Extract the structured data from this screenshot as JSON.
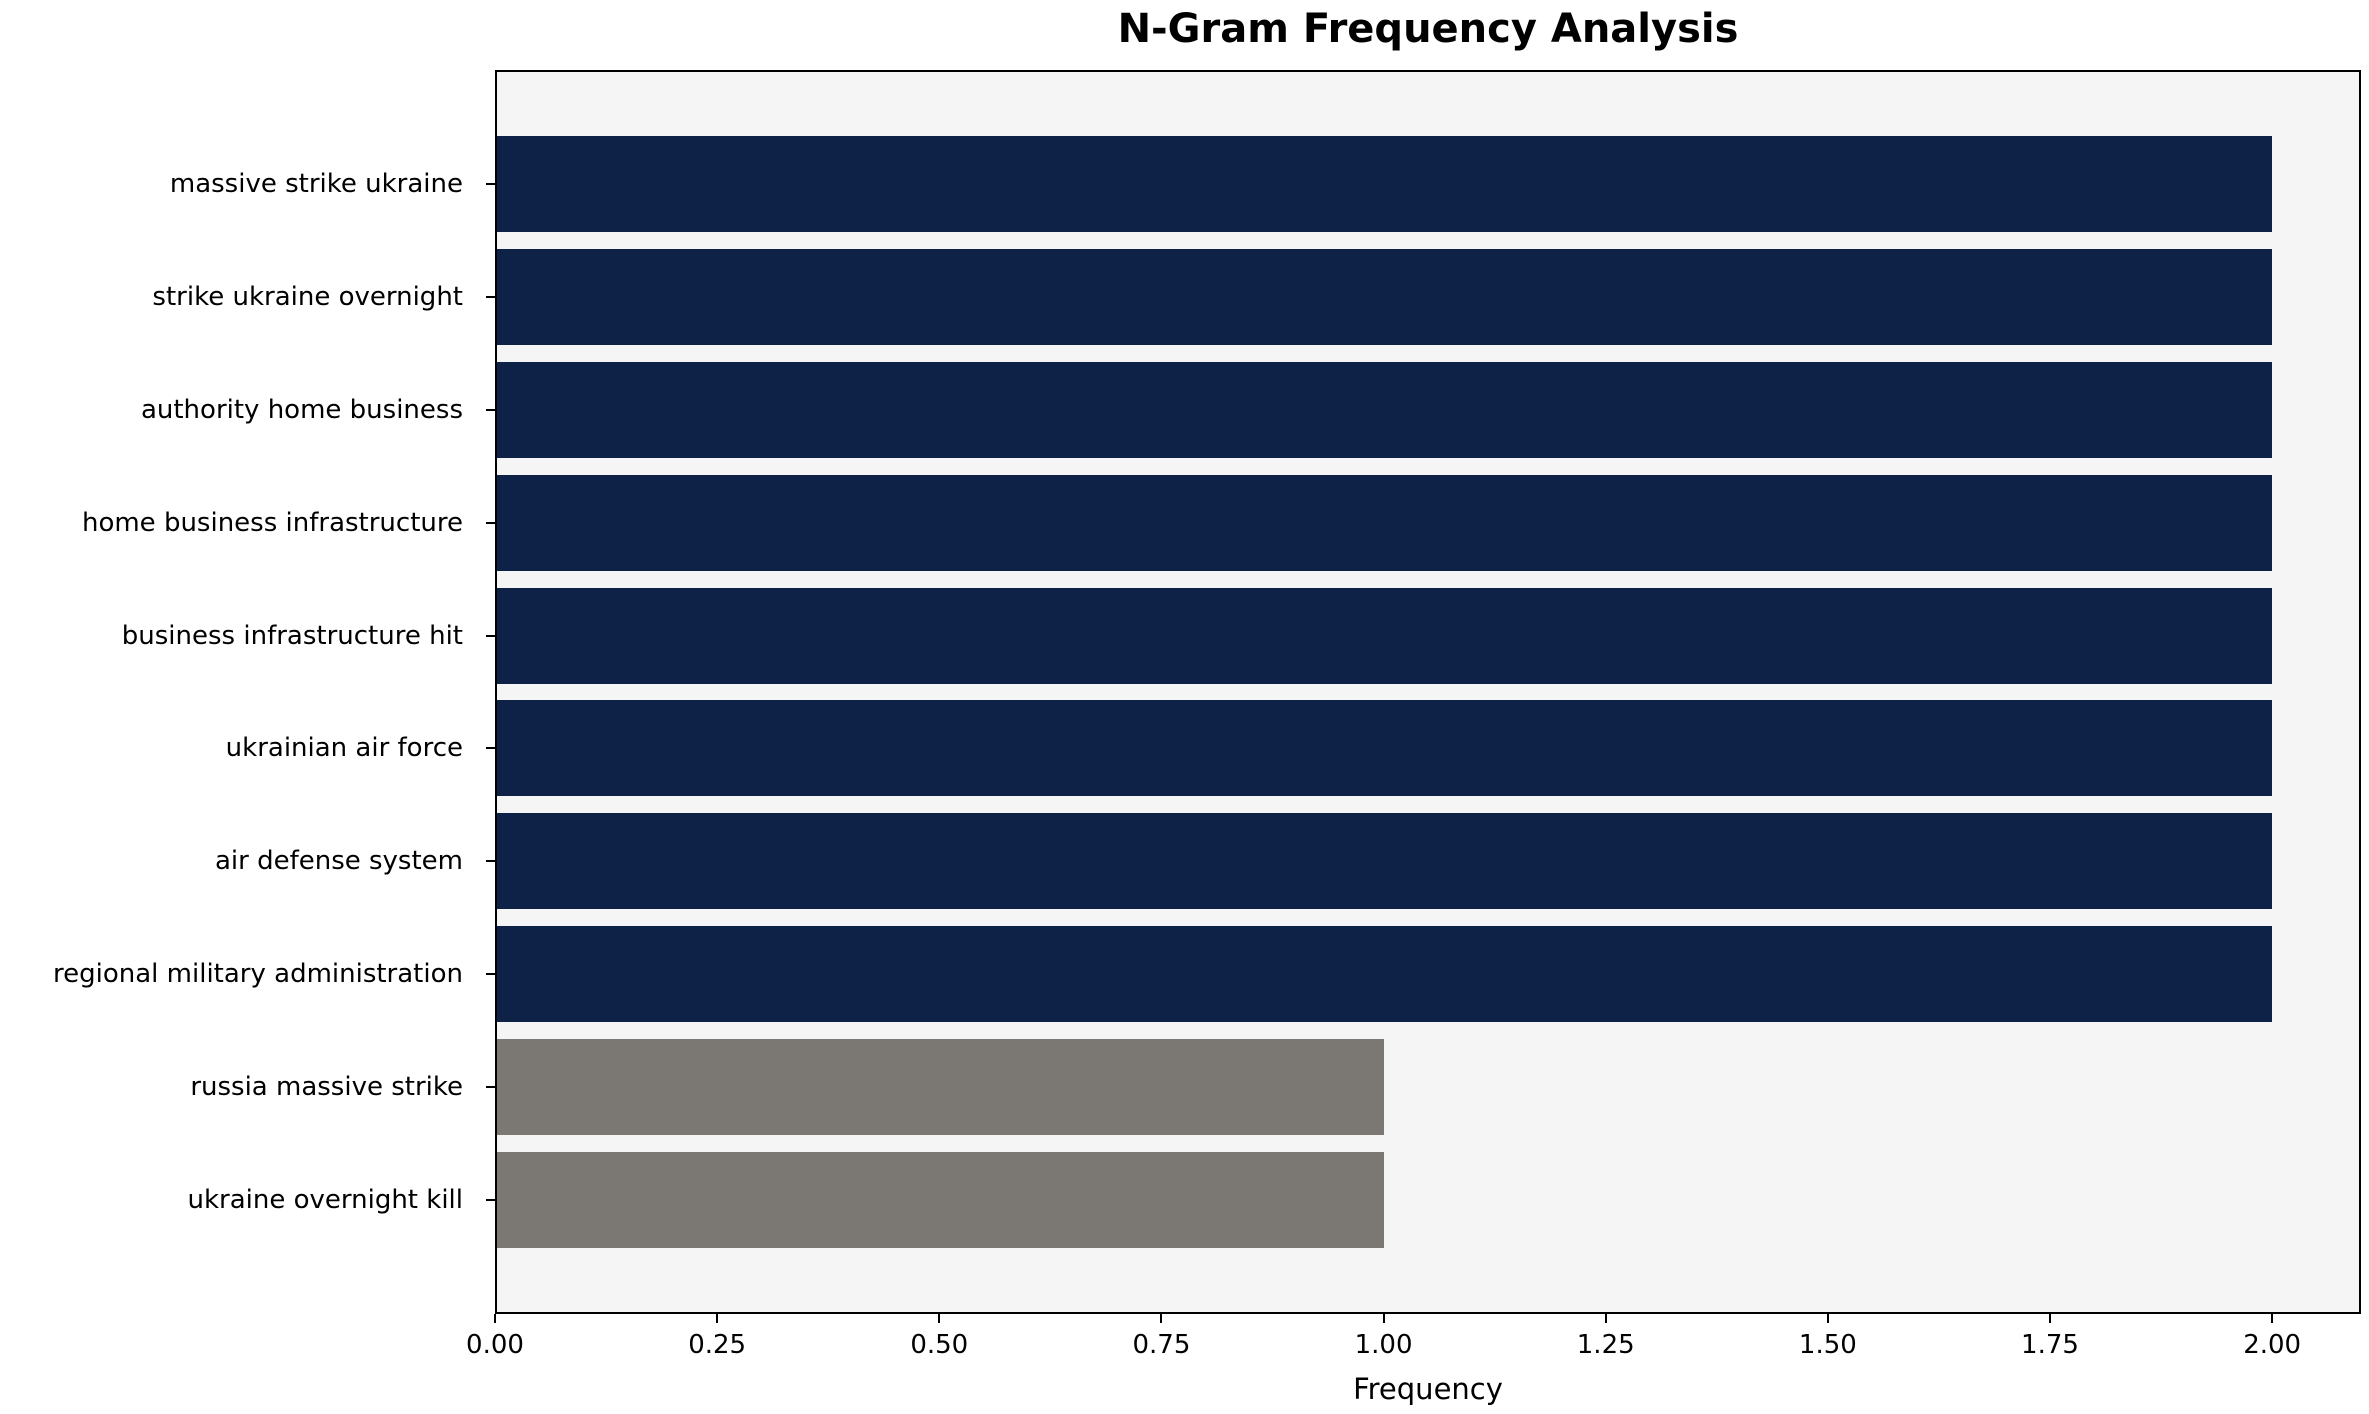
{
  "chart_data": {
    "type": "bar",
    "orientation": "horizontal",
    "title": "N-Gram Frequency Analysis",
    "xlabel": "Frequency",
    "ylabel": "",
    "categories": [
      "massive strike ukraine",
      "strike ukraine overnight",
      "authority home business",
      "home business infrastructure",
      "business infrastructure hit",
      "ukrainian air force",
      "air defense system",
      "regional military administration",
      "russia massive strike",
      "ukraine overnight kill"
    ],
    "values": [
      2,
      2,
      2,
      2,
      2,
      2,
      2,
      2,
      1,
      1
    ],
    "bar_colors": [
      "#0e2247",
      "#0e2247",
      "#0e2247",
      "#0e2247",
      "#0e2247",
      "#0e2247",
      "#0e2247",
      "#0e2247",
      "#7b7873",
      "#7b7873"
    ],
    "xlim": [
      0,
      2.1
    ],
    "xticks": [
      0.0,
      0.25,
      0.5,
      0.75,
      1.0,
      1.25,
      1.5,
      1.75,
      2.0
    ],
    "xtick_labels": [
      "0.00",
      "0.25",
      "0.50",
      "0.75",
      "1.00",
      "1.25",
      "1.50",
      "1.75",
      "2.00"
    ],
    "grid": false,
    "legend": "none",
    "colors": {
      "primary_bar": "#0e2247",
      "secondary_bar": "#7b7873",
      "plot_background": "#f5f5f5",
      "figure_background": "#ffffff",
      "axis": "#000000"
    }
  }
}
